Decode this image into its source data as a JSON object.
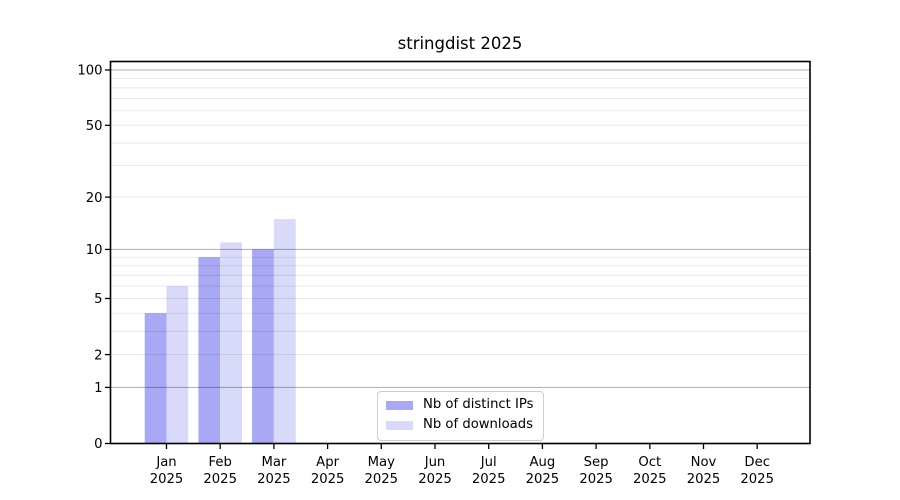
{
  "chart_data": {
    "type": "bar",
    "title": "stringdist 2025",
    "categories": [
      "Jan",
      "Feb",
      "Mar",
      "Apr",
      "May",
      "Jun",
      "Jul",
      "Aug",
      "Sep",
      "Oct",
      "Nov",
      "Dec"
    ],
    "category_year": "2025",
    "series": [
      {
        "name": "Nb of distinct IPs",
        "color": "#a8a8f4",
        "values": [
          4,
          9,
          10,
          0,
          0,
          0,
          0,
          0,
          0,
          0,
          0,
          0
        ]
      },
      {
        "name": "Nb of downloads",
        "color": "#d9d9f9",
        "values": [
          6,
          11,
          15,
          0,
          0,
          0,
          0,
          0,
          0,
          0,
          0,
          0
        ]
      }
    ],
    "xlabel": "",
    "ylabel": "",
    "y_axis": {
      "scale": "log1p",
      "tick_labels": [
        0,
        1,
        2,
        5,
        10,
        20,
        50,
        100
      ],
      "grid_major": [
        1,
        10,
        100
      ],
      "grid_minor": [
        2,
        3,
        4,
        5,
        6,
        7,
        8,
        9,
        20,
        30,
        40,
        50,
        60,
        70,
        80,
        90
      ],
      "ylim": [
        0,
        111
      ]
    },
    "grid": "on",
    "legend": {
      "position": "lower-center-inside"
    },
    "colors": {
      "grid_minor": "#e8e8e8",
      "grid_major": "#adadad",
      "axis": "#000000",
      "tick_text": "#000000",
      "background": "#ffffff"
    }
  }
}
